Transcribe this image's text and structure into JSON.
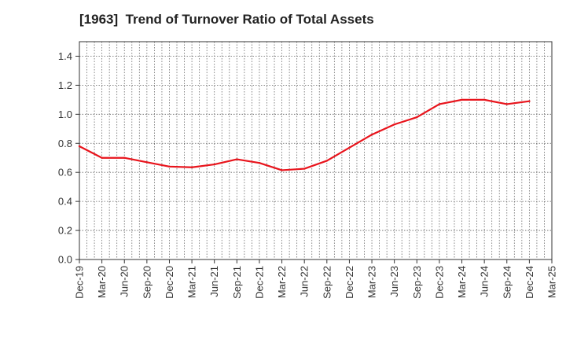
{
  "chart_data": {
    "type": "line",
    "title": "[1963]  Trend of Turnover Ratio of Total Assets",
    "xlabel": "",
    "ylabel": "",
    "x": [
      "Dec-19",
      "Mar-20",
      "Jun-20",
      "Sep-20",
      "Dec-20",
      "Mar-21",
      "Jun-21",
      "Sep-21",
      "Dec-21",
      "Mar-22",
      "Jun-22",
      "Sep-22",
      "Dec-22",
      "Mar-23",
      "Jun-23",
      "Sep-23",
      "Dec-23",
      "Mar-24",
      "Jun-24",
      "Sep-24",
      "Dec-24",
      "Mar-25"
    ],
    "series": [
      {
        "name": "",
        "color": "#e8141c",
        "values": [
          0.78,
          0.7,
          0.7,
          0.67,
          0.64,
          0.635,
          0.655,
          0.69,
          0.665,
          0.615,
          0.625,
          0.68,
          0.77,
          0.86,
          0.93,
          0.98,
          1.07,
          1.1,
          1.1,
          1.07,
          1.09,
          null
        ]
      }
    ],
    "ylim": [
      0,
      1.5
    ],
    "yticks": [
      0.0,
      0.2,
      0.4,
      0.6,
      0.8,
      1.0,
      1.2,
      1.4
    ],
    "ytick_labels": [
      "0.0",
      "0.2",
      "0.4",
      "0.6",
      "0.8",
      "1.0",
      "1.2",
      "1.4"
    ],
    "grid": true,
    "grid_style": "dotted",
    "legend": "none"
  }
}
